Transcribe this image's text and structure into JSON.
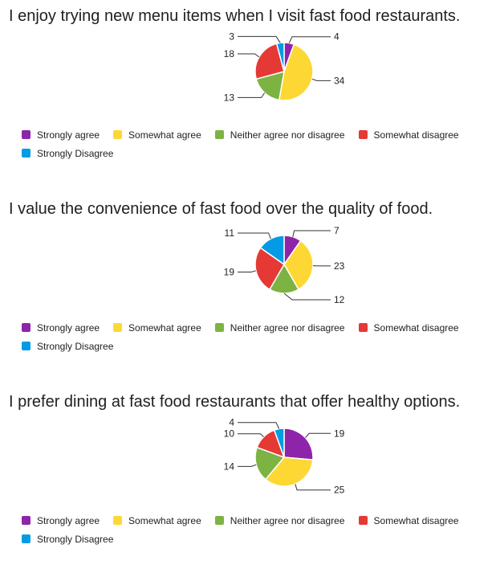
{
  "colors": {
    "Strongly agree": "#8e24aa",
    "Somewhat agree": "#fdd835",
    "Neither agree nor disagree": "#7cb342",
    "Somewhat disagree": "#e53935",
    "Strongly Disagree": "#039be5"
  },
  "legend_labels": [
    "Strongly agree",
    "Somewhat agree",
    "Neither agree nor disagree",
    "Somewhat disagree",
    "Strongly Disagree"
  ],
  "chart_data": [
    {
      "type": "pie",
      "title": "I enjoy trying new menu items when I visit fast food restaurants.",
      "categories": [
        "Strongly agree",
        "Somewhat agree",
        "Neither agree nor disagree",
        "Somewhat disagree",
        "Strongly Disagree"
      ],
      "values": [
        4,
        34,
        13,
        18,
        3
      ],
      "legend": "bottom"
    },
    {
      "type": "pie",
      "title": "I value the convenience of fast food over the quality of food.",
      "categories": [
        "Strongly agree",
        "Somewhat agree",
        "Neither agree nor disagree",
        "Somewhat disagree",
        "Strongly Disagree"
      ],
      "values": [
        7,
        23,
        12,
        19,
        11
      ],
      "legend": "bottom"
    },
    {
      "type": "pie",
      "title": "I prefer dining at fast food restaurants that offer healthy options.",
      "categories": [
        "Strongly agree",
        "Somewhat agree",
        "Neither agree nor disagree",
        "Somewhat disagree",
        "Strongly Disagree"
      ],
      "values": [
        19,
        25,
        14,
        10,
        4
      ],
      "legend": "bottom"
    }
  ]
}
